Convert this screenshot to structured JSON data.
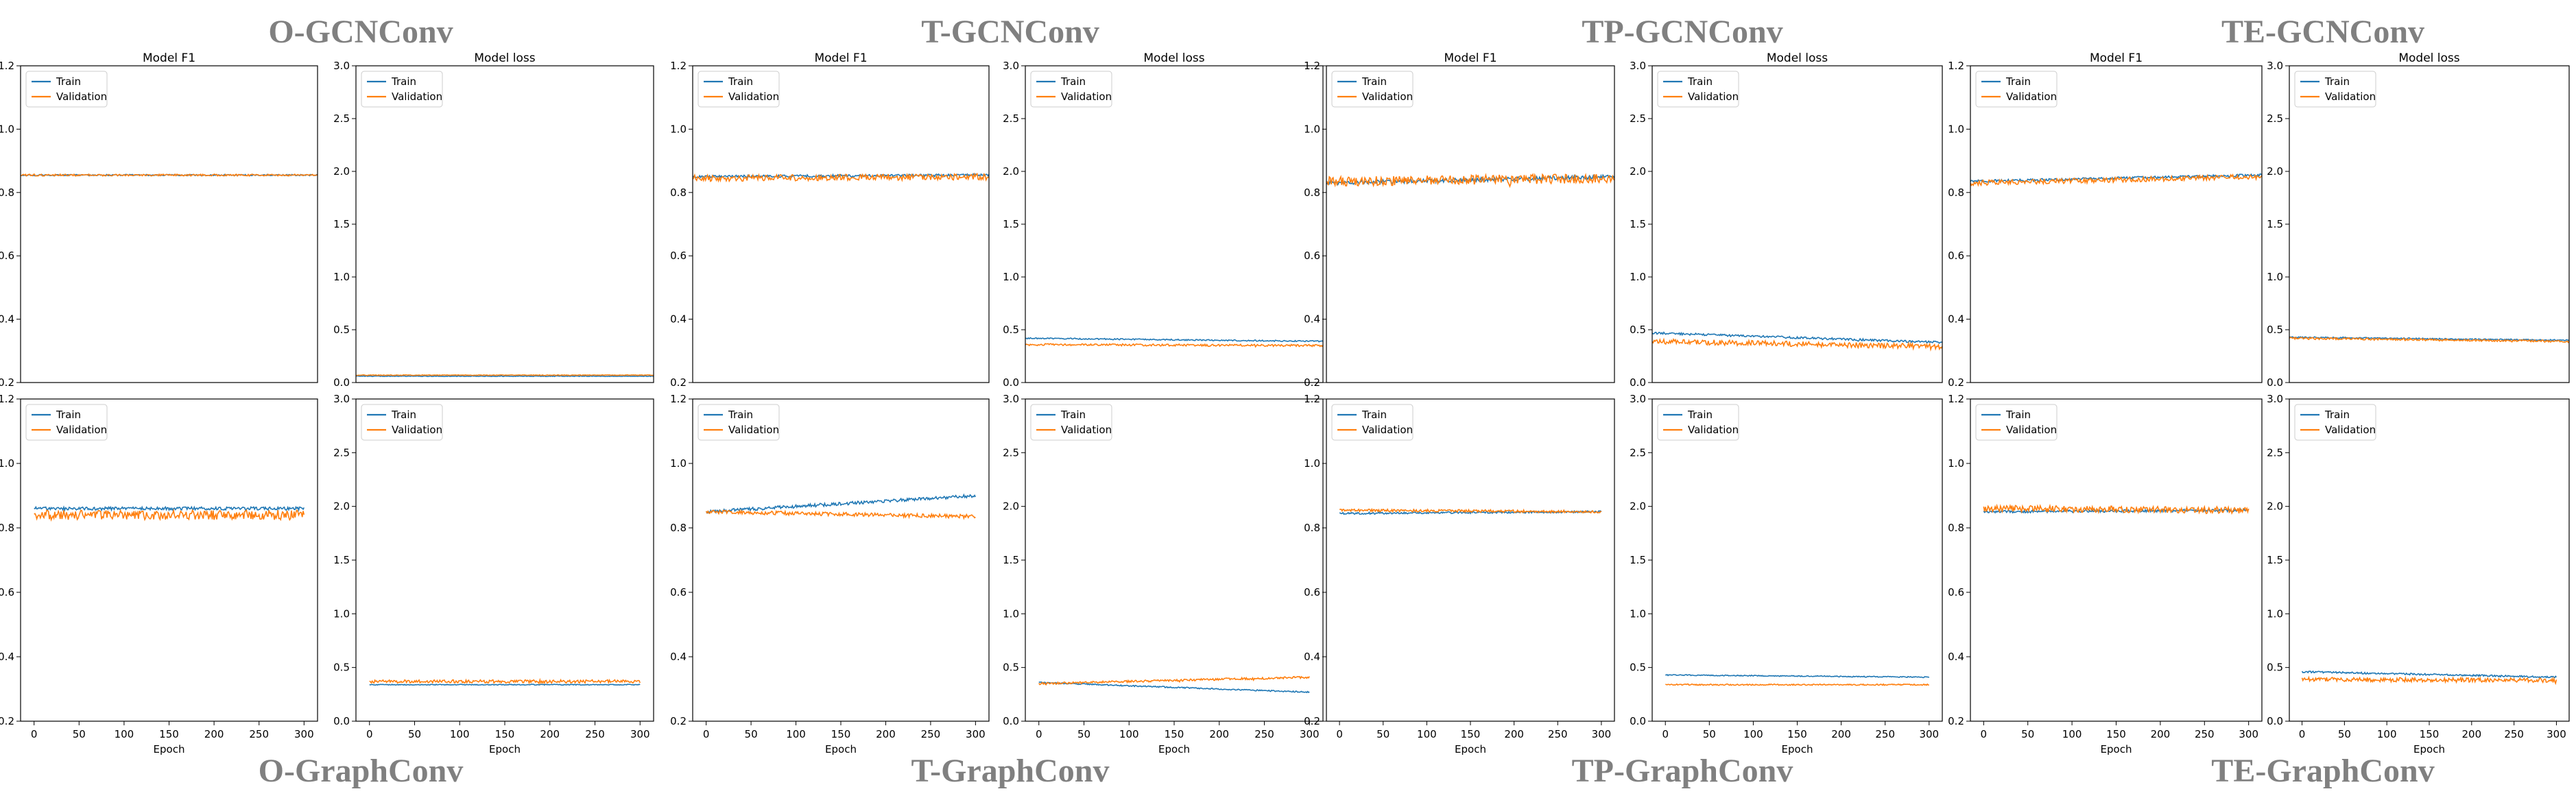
{
  "groups": [
    {
      "name": "O-GCNConv",
      "position": "top"
    },
    {
      "name": "T-GCNConv",
      "position": "top"
    },
    {
      "name": "TP-GCNConv",
      "position": "top"
    },
    {
      "name": "TE-GCNConv",
      "position": "top"
    },
    {
      "name": "O-GraphConv",
      "position": "bottom"
    },
    {
      "name": "T-GraphConv",
      "position": "bottom"
    },
    {
      "name": "TP-GraphConv",
      "position": "bottom"
    },
    {
      "name": "TE-GraphConv",
      "position": "bottom"
    }
  ],
  "colors": {
    "train": "#1f77b4",
    "validation": "#ff7f0e",
    "title": "#808080"
  },
  "chart_data": [
    {
      "id": "o-gcn-f1",
      "type": "line",
      "group": "O-GCNConv",
      "title": "Model F1",
      "xlabel": "",
      "ylabel": "",
      "xlim": [
        0,
        300
      ],
      "ylim": [
        0.2,
        1.2
      ],
      "yticks": [
        0.2,
        0.4,
        0.6,
        0.8,
        1.0,
        1.2
      ],
      "xticks": [],
      "legend": "top-left",
      "series": [
        {
          "name": "Train",
          "start": 0.855,
          "end": 0.855,
          "noise": 0.002
        },
        {
          "name": "Validation",
          "start": 0.855,
          "end": 0.855,
          "noise": 0.003
        }
      ]
    },
    {
      "id": "o-gcn-loss",
      "type": "line",
      "group": "O-GCNConv",
      "title": "Model loss",
      "xlabel": "",
      "ylabel": "",
      "xlim": [
        0,
        300
      ],
      "ylim": [
        0,
        3
      ],
      "yticks": [
        0.0,
        0.5,
        1.0,
        1.5,
        2.0,
        2.5,
        3.0
      ],
      "xticks": [],
      "legend": "top-left",
      "series": [
        {
          "name": "Train",
          "start": 0.06,
          "end": 0.06,
          "noise": 0.003
        },
        {
          "name": "Validation",
          "start": 0.07,
          "end": 0.07,
          "noise": 0.003
        }
      ]
    },
    {
      "id": "t-gcn-f1",
      "type": "line",
      "group": "T-GCNConv",
      "title": "Model F1",
      "xlabel": "",
      "ylabel": "",
      "xlim": [
        0,
        300
      ],
      "ylim": [
        0.2,
        1.2
      ],
      "yticks": [
        0.2,
        0.4,
        0.6,
        0.8,
        1.0,
        1.2
      ],
      "xticks": [],
      "legend": "top-left",
      "series": [
        {
          "name": "Train",
          "start": 0.85,
          "end": 0.855,
          "noise": 0.004
        },
        {
          "name": "Validation",
          "start": 0.845,
          "end": 0.85,
          "noise": 0.01
        }
      ]
    },
    {
      "id": "t-gcn-loss",
      "type": "line",
      "group": "T-GCNConv",
      "title": "Model loss",
      "xlabel": "",
      "ylabel": "",
      "xlim": [
        0,
        300
      ],
      "ylim": [
        0,
        3
      ],
      "yticks": [
        0.0,
        0.5,
        1.0,
        1.5,
        2.0,
        2.5,
        3.0
      ],
      "xticks": [],
      "legend": "top-left",
      "series": [
        {
          "name": "Train",
          "start": 0.42,
          "end": 0.39,
          "noise": 0.006
        },
        {
          "name": "Validation",
          "start": 0.36,
          "end": 0.35,
          "noise": 0.01
        }
      ]
    },
    {
      "id": "tp-gcn-f1",
      "type": "line",
      "group": "TP-GCNConv",
      "title": "Model F1",
      "xlabel": "",
      "ylabel": "",
      "xlim": [
        0,
        300
      ],
      "ylim": [
        0.2,
        1.2
      ],
      "yticks": [
        0.2,
        0.4,
        0.6,
        0.8,
        1.0,
        1.2
      ],
      "xticks": [],
      "legend": "top-left",
      "series": [
        {
          "name": "Train",
          "start": 0.83,
          "end": 0.85,
          "noise": 0.006
        },
        {
          "name": "Validation",
          "start": 0.835,
          "end": 0.845,
          "noise": 0.015
        }
      ]
    },
    {
      "id": "tp-gcn-loss",
      "type": "line",
      "group": "TP-GCNConv",
      "title": "Model loss",
      "xlabel": "",
      "ylabel": "",
      "xlim": [
        0,
        300
      ],
      "ylim": [
        0,
        3
      ],
      "yticks": [
        0.0,
        0.5,
        1.0,
        1.5,
        2.0,
        2.5,
        3.0
      ],
      "xticks": [],
      "legend": "top-left",
      "series": [
        {
          "name": "Train",
          "start": 0.47,
          "end": 0.38,
          "noise": 0.01
        },
        {
          "name": "Validation",
          "start": 0.39,
          "end": 0.34,
          "noise": 0.025
        }
      ]
    },
    {
      "id": "te-gcn-f1",
      "type": "line",
      "group": "TE-GCNConv",
      "title": "Model F1",
      "xlabel": "",
      "ylabel": "",
      "xlim": [
        0,
        300
      ],
      "ylim": [
        0.2,
        1.2
      ],
      "yticks": [
        0.2,
        0.4,
        0.6,
        0.8,
        1.0,
        1.2
      ],
      "xticks": [],
      "legend": "top-left",
      "series": [
        {
          "name": "Train",
          "start": 0.835,
          "end": 0.855,
          "noise": 0.004
        },
        {
          "name": "Validation",
          "start": 0.83,
          "end": 0.85,
          "noise": 0.008
        }
      ]
    },
    {
      "id": "te-gcn-loss",
      "type": "line",
      "group": "TE-GCNConv",
      "title": "Model loss",
      "xlabel": "",
      "ylabel": "",
      "xlim": [
        0,
        300
      ],
      "ylim": [
        0,
        3
      ],
      "yticks": [
        0.0,
        0.5,
        1.0,
        1.5,
        2.0,
        2.5,
        3.0
      ],
      "xticks": [],
      "legend": "top-left",
      "series": [
        {
          "name": "Train",
          "start": 0.43,
          "end": 0.4,
          "noise": 0.006
        },
        {
          "name": "Validation",
          "start": 0.42,
          "end": 0.39,
          "noise": 0.01
        }
      ]
    },
    {
      "id": "o-graph-f1",
      "type": "line",
      "group": "O-GraphConv",
      "title": "",
      "xlabel": "Epoch",
      "ylabel": "",
      "xlim": [
        -15,
        315
      ],
      "ylim": [
        0.2,
        1.2
      ],
      "yticks": [
        0.2,
        0.4,
        0.6,
        0.8,
        1.0,
        1.2
      ],
      "xticks": [
        0,
        50,
        100,
        150,
        200,
        250,
        300
      ],
      "legend": "top-left",
      "series": [
        {
          "name": "Train",
          "start": 0.86,
          "end": 0.86,
          "noise": 0.005
        },
        {
          "name": "Validation",
          "start": 0.84,
          "end": 0.84,
          "noise": 0.015
        }
      ]
    },
    {
      "id": "o-graph-loss",
      "type": "line",
      "group": "O-GraphConv",
      "title": "",
      "xlabel": "Epoch",
      "ylabel": "",
      "xlim": [
        -15,
        315
      ],
      "ylim": [
        0,
        3
      ],
      "yticks": [
        0.0,
        0.5,
        1.0,
        1.5,
        2.0,
        2.5,
        3.0
      ],
      "xticks": [
        0,
        50,
        100,
        150,
        200,
        250,
        300
      ],
      "legend": "top-left",
      "series": [
        {
          "name": "Train",
          "start": 0.34,
          "end": 0.34,
          "noise": 0.004
        },
        {
          "name": "Validation",
          "start": 0.37,
          "end": 0.37,
          "noise": 0.015
        }
      ]
    },
    {
      "id": "t-graph-f1",
      "type": "line",
      "group": "T-GraphConv",
      "title": "",
      "xlabel": "Epoch",
      "ylabel": "",
      "xlim": [
        -15,
        315
      ],
      "ylim": [
        0.2,
        1.2
      ],
      "yticks": [
        0.2,
        0.4,
        0.6,
        0.8,
        1.0,
        1.2
      ],
      "xticks": [
        0,
        50,
        100,
        150,
        200,
        250,
        300
      ],
      "legend": "top-left",
      "series": [
        {
          "name": "Train",
          "start": 0.85,
          "end": 0.9,
          "noise": 0.005
        },
        {
          "name": "Validation",
          "start": 0.85,
          "end": 0.835,
          "noise": 0.006
        }
      ]
    },
    {
      "id": "t-graph-loss",
      "type": "line",
      "group": "T-GraphConv",
      "title": "",
      "xlabel": "Epoch",
      "ylabel": "",
      "xlim": [
        -15,
        315
      ],
      "ylim": [
        0,
        3
      ],
      "yticks": [
        0.0,
        0.5,
        1.0,
        1.5,
        2.0,
        2.5,
        3.0
      ],
      "xticks": [
        0,
        50,
        100,
        150,
        200,
        250,
        300
      ],
      "legend": "top-left",
      "series": [
        {
          "name": "Train",
          "start": 0.36,
          "end": 0.27,
          "noise": 0.006
        },
        {
          "name": "Validation",
          "start": 0.35,
          "end": 0.41,
          "noise": 0.01
        }
      ]
    },
    {
      "id": "tp-graph-f1",
      "type": "line",
      "group": "TP-GraphConv",
      "title": "",
      "xlabel": "Epoch",
      "ylabel": "",
      "xlim": [
        -15,
        315
      ],
      "ylim": [
        0.2,
        1.2
      ],
      "yticks": [
        0.2,
        0.4,
        0.6,
        0.8,
        1.0,
        1.2
      ],
      "xticks": [
        0,
        50,
        100,
        150,
        200,
        250,
        300
      ],
      "legend": "top-left",
      "series": [
        {
          "name": "Train",
          "start": 0.845,
          "end": 0.85,
          "noise": 0.003
        },
        {
          "name": "Validation",
          "start": 0.855,
          "end": 0.85,
          "noise": 0.004
        }
      ]
    },
    {
      "id": "tp-graph-loss",
      "type": "line",
      "group": "TP-GraphConv",
      "title": "",
      "xlabel": "Epoch",
      "ylabel": "",
      "xlim": [
        -15,
        315
      ],
      "ylim": [
        0,
        3
      ],
      "yticks": [
        0.0,
        0.5,
        1.0,
        1.5,
        2.0,
        2.5,
        3.0
      ],
      "xticks": [
        0,
        50,
        100,
        150,
        200,
        250,
        300
      ],
      "legend": "top-left",
      "series": [
        {
          "name": "Train",
          "start": 0.43,
          "end": 0.41,
          "noise": 0.005
        },
        {
          "name": "Validation",
          "start": 0.34,
          "end": 0.34,
          "noise": 0.006
        }
      ]
    },
    {
      "id": "te-graph-f1",
      "type": "line",
      "group": "TE-GraphConv",
      "title": "",
      "xlabel": "Epoch",
      "ylabel": "",
      "xlim": [
        -15,
        315
      ],
      "ylim": [
        0.2,
        1.2
      ],
      "yticks": [
        0.2,
        0.4,
        0.6,
        0.8,
        1.0,
        1.2
      ],
      "xticks": [
        0,
        50,
        100,
        150,
        200,
        250,
        300
      ],
      "legend": "top-left",
      "series": [
        {
          "name": "Train",
          "start": 0.85,
          "end": 0.855,
          "noise": 0.004
        },
        {
          "name": "Validation",
          "start": 0.86,
          "end": 0.855,
          "noise": 0.01
        }
      ]
    },
    {
      "id": "te-graph-loss",
      "type": "line",
      "group": "TE-GraphConv",
      "title": "",
      "xlabel": "Epoch",
      "ylabel": "",
      "xlim": [
        -15,
        315
      ],
      "ylim": [
        0,
        3
      ],
      "yticks": [
        0.0,
        0.5,
        1.0,
        1.5,
        2.0,
        2.5,
        3.0
      ],
      "xticks": [
        0,
        50,
        100,
        150,
        200,
        250,
        300
      ],
      "legend": "top-left",
      "series": [
        {
          "name": "Train",
          "start": 0.46,
          "end": 0.41,
          "noise": 0.008
        },
        {
          "name": "Validation",
          "start": 0.39,
          "end": 0.38,
          "noise": 0.02
        }
      ]
    }
  ]
}
